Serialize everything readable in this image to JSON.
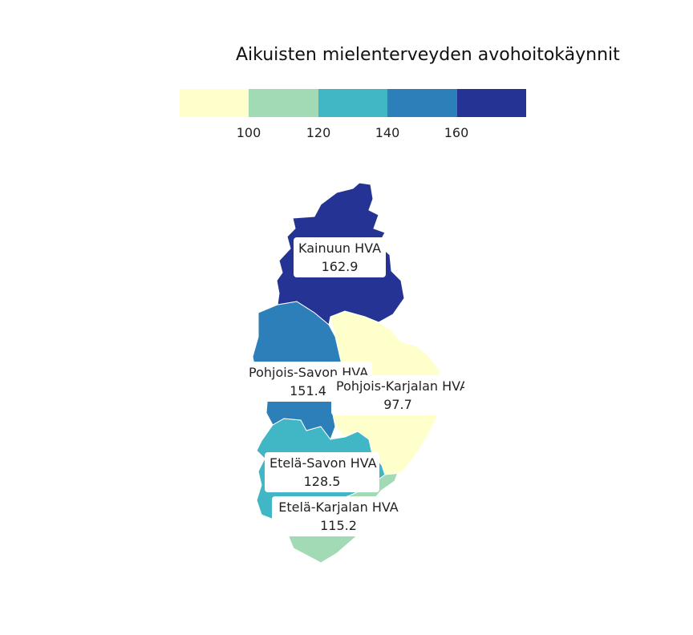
{
  "title": "Aikuisten mielenterveyden avohoitokäynnit",
  "legend": {
    "colors": [
      "#ffffcc",
      "#a1dab4",
      "#41b6c4",
      "#2c7fb8",
      "#253494"
    ],
    "ticks": [
      "100",
      "120",
      "140",
      "160"
    ]
  },
  "regions": [
    {
      "name": "Kainuun HVA",
      "value": "162.9",
      "color": "#253494"
    },
    {
      "name": "Pohjois-Savon HVA",
      "value": "151.4",
      "color": "#2c7fb8"
    },
    {
      "name": "Pohjois-Karjalan HVA",
      "value": "97.7",
      "color": "#ffffcc"
    },
    {
      "name": "Etelä-Savon HVA",
      "value": "128.5",
      "color": "#41b6c4"
    },
    {
      "name": "Etelä-Karjalan HVA",
      "value": "115.2",
      "color": "#a1dab4"
    }
  ]
}
